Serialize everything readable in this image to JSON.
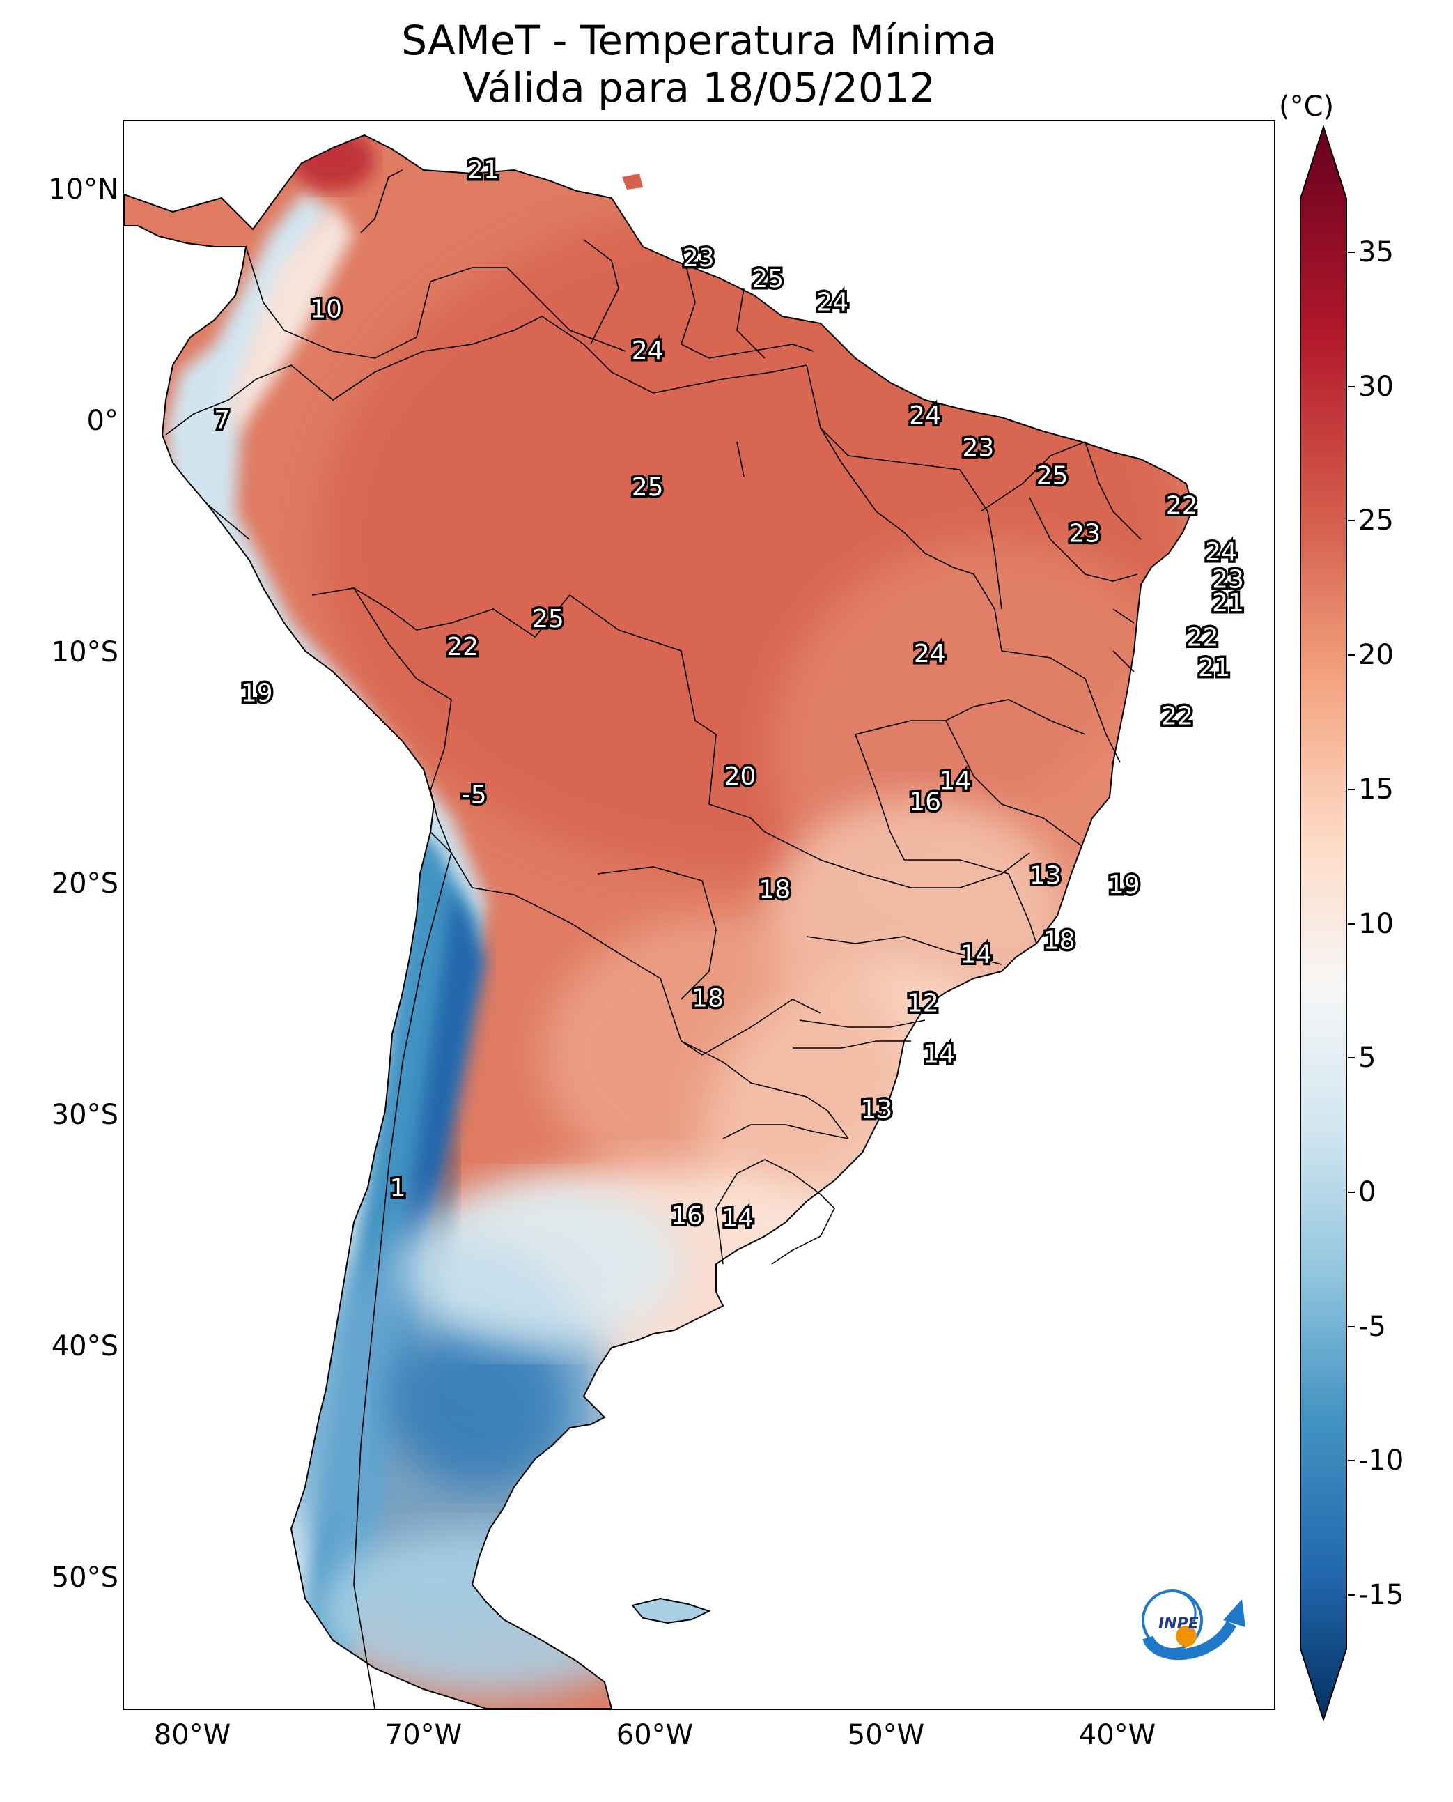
{
  "title": {
    "line1": "SAMeT - Temperatura Mínima",
    "line2": "Válida para 18/05/2012"
  },
  "colorbar": {
    "unit": "(°C)",
    "ticks": [
      "35",
      "30",
      "25",
      "20",
      "15",
      "10",
      "5",
      "0",
      "-5",
      "-10",
      "-15"
    ],
    "min": -17,
    "max": 37,
    "colors": [
      "#053061",
      "#2166ac",
      "#4393c3",
      "#92c5de",
      "#d1e5f0",
      "#f7f7f7",
      "#fddbc7",
      "#f4a582",
      "#d6604d",
      "#b2182b",
      "#67001f"
    ]
  },
  "axes": {
    "lat_ticks": [
      "10°N",
      "0°",
      "10°S",
      "20°S",
      "30°S",
      "40°S",
      "50°S"
    ],
    "lon_ticks": [
      "80°W",
      "70°W",
      "60°W",
      "50°W",
      "40°W"
    ]
  },
  "logo": {
    "text": "INPE"
  },
  "labels": [
    {
      "value": "21",
      "lon": -67.2,
      "lat": 10.6
    },
    {
      "value": "10",
      "lon": -74.0,
      "lat": 4.6
    },
    {
      "value": "7",
      "lon": -78.5,
      "lat": -0.2
    },
    {
      "value": "23",
      "lon": -57.9,
      "lat": 6.8
    },
    {
      "value": "25",
      "lon": -54.9,
      "lat": 5.9
    },
    {
      "value": "24",
      "lon": -52.1,
      "lat": 4.9
    },
    {
      "value": "24",
      "lon": -60.1,
      "lat": 2.8
    },
    {
      "value": "24",
      "lon": -48.1,
      "lat": 0.0
    },
    {
      "value": "23",
      "lon": -45.8,
      "lat": -1.4
    },
    {
      "value": "25",
      "lon": -60.1,
      "lat": -3.1
    },
    {
      "value": "25",
      "lon": -42.6,
      "lat": -2.6
    },
    {
      "value": "22",
      "lon": -37.0,
      "lat": -3.9
    },
    {
      "value": "23",
      "lon": -41.2,
      "lat": -5.1
    },
    {
      "value": "24",
      "lon": -35.3,
      "lat": -5.9
    },
    {
      "value": "23",
      "lon": -35.0,
      "lat": -7.1
    },
    {
      "value": "21",
      "lon": -35.0,
      "lat": -8.1
    },
    {
      "value": "25",
      "lon": -64.4,
      "lat": -8.8
    },
    {
      "value": "22",
      "lon": -68.1,
      "lat": -10.0
    },
    {
      "value": "22",
      "lon": -36.1,
      "lat": -9.6
    },
    {
      "value": "24",
      "lon": -47.9,
      "lat": -10.3
    },
    {
      "value": "21",
      "lon": -35.6,
      "lat": -10.9
    },
    {
      "value": "19",
      "lon": -77.0,
      "lat": -12.0
    },
    {
      "value": "22",
      "lon": -37.2,
      "lat": -13.0
    },
    {
      "value": "14",
      "lon": -46.8,
      "lat": -15.8
    },
    {
      "value": "20",
      "lon": -56.1,
      "lat": -15.6
    },
    {
      "value": "16",
      "lon": -48.1,
      "lat": -16.7
    },
    {
      "value": "-5",
      "lon": -67.6,
      "lat": -16.4
    },
    {
      "value": "13",
      "lon": -42.9,
      "lat": -19.9
    },
    {
      "value": "19",
      "lon": -39.5,
      "lat": -20.3
    },
    {
      "value": "18",
      "lon": -54.6,
      "lat": -20.5
    },
    {
      "value": "14",
      "lon": -45.9,
      "lat": -23.3
    },
    {
      "value": "18",
      "lon": -42.3,
      "lat": -22.7
    },
    {
      "value": "12",
      "lon": -48.2,
      "lat": -25.4
    },
    {
      "value": "18",
      "lon": -57.5,
      "lat": -25.2
    },
    {
      "value": "14",
      "lon": -47.5,
      "lat": -27.6
    },
    {
      "value": "13",
      "lon": -50.2,
      "lat": -30.0
    },
    {
      "value": "1",
      "lon": -70.9,
      "lat": -33.4
    },
    {
      "value": "16",
      "lon": -58.4,
      "lat": -34.6
    },
    {
      "value": "14",
      "lon": -56.2,
      "lat": -34.7
    }
  ]
}
